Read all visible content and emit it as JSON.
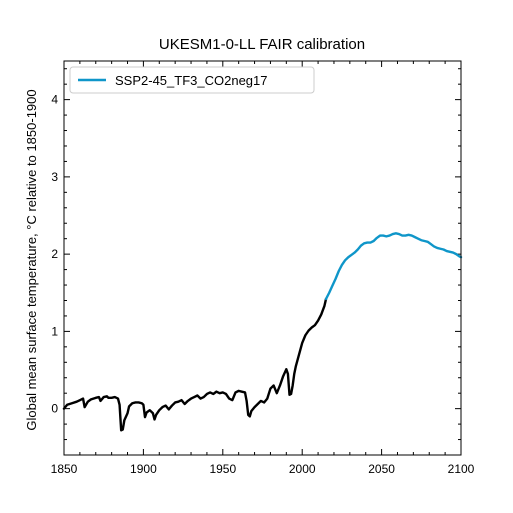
{
  "chart_data": {
    "type": "line",
    "title": "UKESM1-0-LL FAIR calibration",
    "xlabel": "",
    "ylabel": "Global mean surface temperature, °C relative to 1850-1900",
    "xlim": [
      1850,
      2100
    ],
    "ylim": [
      -0.6,
      4.5
    ],
    "xticks": [
      1850,
      1900,
      1950,
      2000,
      2050,
      2100
    ],
    "yticks": [
      0,
      1,
      2,
      3,
      4
    ],
    "grid": false,
    "legend_position": "top-left",
    "series": [
      {
        "name": "",
        "color": "#000000",
        "x": [
          1850,
          1852,
          1855,
          1858,
          1860,
          1862,
          1863,
          1865,
          1867,
          1870,
          1872,
          1873,
          1875,
          1877,
          1878,
          1880,
          1882,
          1884,
          1885,
          1886,
          1887,
          1888,
          1890,
          1891,
          1893,
          1895,
          1897,
          1899,
          1900,
          1901,
          1902,
          1904,
          1906,
          1907,
          1908,
          1910,
          1912,
          1914,
          1916,
          1918,
          1920,
          1922,
          1924,
          1926,
          1928,
          1930,
          1932,
          1934,
          1936,
          1938,
          1940,
          1942,
          1944,
          1946,
          1948,
          1950,
          1952,
          1954,
          1956,
          1958,
          1960,
          1962,
          1964,
          1965,
          1966,
          1967,
          1968,
          1970,
          1972,
          1974,
          1976,
          1978,
          1980,
          1982,
          1984,
          1986,
          1988,
          1990,
          1991,
          1992,
          1993,
          1994,
          1995,
          1996,
          1998,
          2000,
          2002,
          2004,
          2006,
          2008,
          2010,
          2012,
          2014,
          2015
        ],
        "y": [
          0.0,
          0.05,
          0.07,
          0.09,
          0.11,
          0.13,
          0.02,
          0.09,
          0.12,
          0.14,
          0.15,
          0.1,
          0.15,
          0.16,
          0.14,
          0.14,
          0.15,
          0.13,
          0.05,
          -0.28,
          -0.27,
          -0.15,
          -0.06,
          0.03,
          0.07,
          0.08,
          0.08,
          0.07,
          0.05,
          -0.11,
          -0.05,
          -0.02,
          -0.06,
          -0.14,
          -0.08,
          -0.02,
          0.02,
          0.04,
          -0.01,
          0.04,
          0.08,
          0.09,
          0.11,
          0.06,
          0.1,
          0.13,
          0.15,
          0.17,
          0.13,
          0.15,
          0.19,
          0.21,
          0.19,
          0.22,
          0.2,
          0.21,
          0.19,
          0.13,
          0.11,
          0.21,
          0.23,
          0.22,
          0.21,
          0.1,
          -0.08,
          -0.1,
          -0.03,
          0.02,
          0.06,
          0.1,
          0.08,
          0.13,
          0.26,
          0.3,
          0.2,
          0.3,
          0.42,
          0.51,
          0.45,
          0.18,
          0.19,
          0.3,
          0.45,
          0.55,
          0.7,
          0.85,
          0.95,
          1.01,
          1.05,
          1.08,
          1.14,
          1.22,
          1.33,
          1.42
        ]
      },
      {
        "name": "SSP2-45_TF3_CO2neg17",
        "color": "#0f96c9",
        "x": [
          2015,
          2017,
          2019,
          2021,
          2023,
          2025,
          2027,
          2029,
          2031,
          2033,
          2035,
          2037,
          2039,
          2041,
          2043,
          2045,
          2047,
          2049,
          2051,
          2053,
          2055,
          2057,
          2059,
          2061,
          2063,
          2065,
          2067,
          2069,
          2071,
          2073,
          2075,
          2077,
          2079,
          2081,
          2083,
          2085,
          2087,
          2089,
          2091,
          2093,
          2095,
          2097,
          2099,
          2100
        ],
        "y": [
          1.42,
          1.5,
          1.59,
          1.68,
          1.78,
          1.86,
          1.92,
          1.96,
          1.99,
          2.02,
          2.06,
          2.11,
          2.14,
          2.15,
          2.15,
          2.17,
          2.21,
          2.24,
          2.24,
          2.23,
          2.24,
          2.26,
          2.27,
          2.26,
          2.24,
          2.24,
          2.25,
          2.24,
          2.22,
          2.2,
          2.18,
          2.17,
          2.16,
          2.13,
          2.1,
          2.08,
          2.07,
          2.06,
          2.04,
          2.03,
          2.02,
          2.0,
          1.97,
          1.96
        ]
      }
    ]
  }
}
